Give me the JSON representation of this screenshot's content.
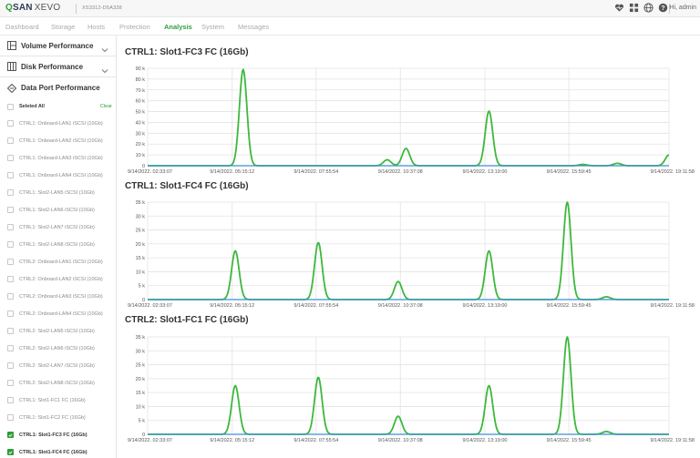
{
  "header": {
    "brand_q": "Q",
    "brand_san": "SAN",
    "brand_xevo": "XEVO",
    "serial": "XS3312-D5A338",
    "user": "Hi, admin",
    "icons": [
      "heart-monitor-icon",
      "grid-icon",
      "globe-icon",
      "help-icon"
    ]
  },
  "nav": {
    "items": [
      "Dashboard",
      "Storage",
      "Hosts",
      "Protection",
      "Analysis",
      "System",
      "Messages"
    ],
    "active": "Analysis"
  },
  "sidebar": {
    "sections": [
      "Volume Performance",
      "Disk Performance",
      "Data Port Performance"
    ],
    "select_all": "Seleted All",
    "clear": "Clear",
    "ports": [
      {
        "label": "CTRL1: Onboard-LAN1 iSCSI (10Gb)",
        "checked": false
      },
      {
        "label": "CTRL1: Onboard-LAN2 iSCSI (10Gb)",
        "checked": false
      },
      {
        "label": "CTRL1: Onboard-LAN3 iSCSI (10Gb)",
        "checked": false
      },
      {
        "label": "CTRL1: Onboard-LAN4 iSCSI (10Gb)",
        "checked": false
      },
      {
        "label": "CTRL1: Slot2-LAN5 iSCSI (10Gb)",
        "checked": false
      },
      {
        "label": "CTRL1: Slot2-LAN6 iSCSI (10Gb)",
        "checked": false
      },
      {
        "label": "CTRL1: Slot2-LAN7 iSCSI (10Gb)",
        "checked": false
      },
      {
        "label": "CTRL1: Slot2-LAN8 iSCSI (10Gb)",
        "checked": false
      },
      {
        "label": "CTRL2: Onboard-LAN1 iSCSI (10Gb)",
        "checked": false
      },
      {
        "label": "CTRL2: Onboard-LAN2 iSCSI (10Gb)",
        "checked": false
      },
      {
        "label": "CTRL2: Onboard-LAN3 iSCSI (10Gb)",
        "checked": false
      },
      {
        "label": "CTRL2: Onboard-LAN4 iSCSI (10Gb)",
        "checked": false
      },
      {
        "label": "CTRL2: Slot2-LAN5 iSCSI (10Gb)",
        "checked": false
      },
      {
        "label": "CTRL2: Slot2-LAN6 iSCSI (10Gb)",
        "checked": false
      },
      {
        "label": "CTRL2: Slot2-LAN7 iSCSI (10Gb)",
        "checked": false
      },
      {
        "label": "CTRL2: Slot2-LAN8 iSCSI (10Gb)",
        "checked": false
      },
      {
        "label": "CTRL1: Slot1-FC1 FC (16Gb)",
        "checked": false
      },
      {
        "label": "CTRL1: Slot1-FC2 FC (16Gb)",
        "checked": false
      },
      {
        "label": "CTRL1: Slot1-FC3 FC (16Gb)",
        "checked": true
      },
      {
        "label": "CTRL1: Slot1-FC4 FC (16Gb)",
        "checked": true
      }
    ]
  },
  "colors": {
    "accent": "#2e9d3a",
    "line_green": "#3db83d",
    "line_blue": "#3a8fd6"
  },
  "chart_data": [
    {
      "type": "line",
      "title": "CTRL1: Slot1-FC3 FC (16Gb)",
      "x_ticks": [
        "9/14/2022, 02:33:07",
        "9/14/2022, 05:15:12",
        "9/14/2022, 07:55:54",
        "9/14/2022, 10:37:08",
        "9/14/2022, 13:19:00",
        "9/14/2022, 15:59:45",
        "9/14/2022, 19:11:58"
      ],
      "y_ticks": [
        "0",
        "10 k",
        "20 k",
        "30 k",
        "40 k",
        "50 k",
        "60 k",
        "70 k",
        "80 k",
        "90 k"
      ],
      "ylim": [
        0,
        90000
      ],
      "grid": true,
      "x_hours": [
        0,
        2.7,
        5.38,
        8.07,
        10.77,
        13.45,
        16.65
      ],
      "series": [
        {
          "color": "green",
          "peaks": [
            [
              3.05,
              89000
            ],
            [
              7.65,
              5500
            ],
            [
              8.25,
              16000
            ],
            [
              10.9,
              50500
            ],
            [
              13.9,
              1200
            ],
            [
              15.0,
              2200
            ],
            [
              16.65,
              10000
            ]
          ]
        },
        {
          "color": "blue",
          "peaks": []
        }
      ]
    },
    {
      "type": "line",
      "title": "CTRL1: Slot1-FC4 FC (16Gb)",
      "x_ticks": [
        "9/14/2022, 02:33:07",
        "9/14/2022, 05:15:12",
        "9/14/2022, 07:55:54",
        "9/14/2022, 10:37:08",
        "9/14/2022, 13:19:00",
        "9/14/2022, 15:59:45",
        "9/14/2022, 19:11:58"
      ],
      "y_ticks": [
        "0",
        "5 k",
        "10 k",
        "15 k",
        "20 k",
        "25 k",
        "30 k",
        "35 k"
      ],
      "ylim": [
        0,
        35000
      ],
      "grid": true,
      "x_hours": [
        0,
        2.7,
        5.38,
        8.07,
        10.77,
        13.45,
        16.65
      ],
      "series": [
        {
          "color": "green",
          "peaks": [
            [
              2.8,
              17500
            ],
            [
              5.45,
              20500
            ],
            [
              8.0,
              6500
            ],
            [
              10.9,
              17500
            ],
            [
              13.4,
              35000
            ],
            [
              14.65,
              1000
            ]
          ]
        },
        {
          "color": "blue",
          "peaks": []
        }
      ]
    },
    {
      "type": "line",
      "title": "CTRL2: Slot1-FC1 FC (16Gb)",
      "x_ticks": [
        "9/14/2022, 02:33:07",
        "9/14/2022, 05:15:12",
        "9/14/2022, 07:55:54",
        "9/14/2022, 10:37:08",
        "9/14/2022, 13:19:00",
        "9/14/2022, 15:59:45",
        "9/14/2022, 19:11:58"
      ],
      "y_ticks": [
        "0",
        "5 k",
        "10 k",
        "15 k",
        "20 k",
        "25 k",
        "30 k",
        "35 k"
      ],
      "ylim": [
        0,
        35000
      ],
      "grid": true,
      "x_hours": [
        0,
        2.7,
        5.38,
        8.07,
        10.77,
        13.45,
        16.65
      ],
      "series": [
        {
          "color": "green",
          "peaks": [
            [
              2.8,
              17500
            ],
            [
              5.45,
              20500
            ],
            [
              8.0,
              6500
            ],
            [
              10.9,
              17500
            ],
            [
              13.4,
              35000
            ],
            [
              14.65,
              1000
            ]
          ]
        },
        {
          "color": "blue",
          "peaks": []
        }
      ]
    }
  ]
}
